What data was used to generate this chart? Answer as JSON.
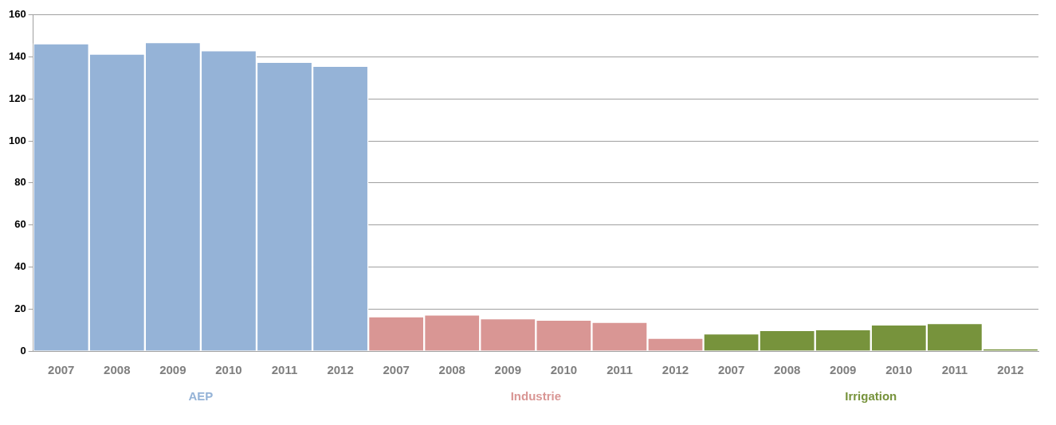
{
  "chart_data": {
    "type": "bar",
    "categories": [
      "2007",
      "2008",
      "2009",
      "2010",
      "2011",
      "2012",
      "2007",
      "2008",
      "2009",
      "2010",
      "2011",
      "2012",
      "2007",
      "2008",
      "2009",
      "2010",
      "2011",
      "2012"
    ],
    "series": [
      {
        "name": "AEP",
        "color": "#95b3d7",
        "values": [
          146.4,
          141.5,
          147,
          143.1,
          137.6,
          135.7,
          null,
          null,
          null,
          null,
          null,
          null,
          null,
          null,
          null,
          null,
          null,
          null
        ]
      },
      {
        "name": "Industrie",
        "color": "#d99694",
        "values": [
          null,
          null,
          null,
          null,
          null,
          null,
          16.5,
          17.3,
          15.5,
          14.8,
          13.8,
          6.2,
          null,
          null,
          null,
          null,
          null,
          null
        ]
      },
      {
        "name": "Irrigation",
        "color": "#77933c",
        "values": [
          null,
          null,
          null,
          null,
          null,
          null,
          null,
          null,
          null,
          null,
          null,
          null,
          8.3,
          9.9,
          10.3,
          12.6,
          13.2,
          1.1
        ]
      }
    ],
    "ylim": [
      0,
      160
    ],
    "yticks": [
      0,
      20,
      40,
      60,
      80,
      100,
      120,
      140,
      160
    ],
    "grid": "y",
    "legend": false
  }
}
